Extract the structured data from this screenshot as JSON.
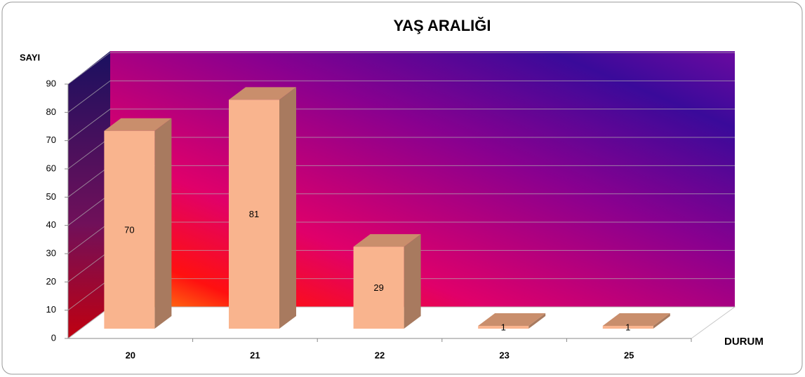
{
  "chart_data": {
    "type": "bar3d",
    "title": "YAŞ ARALIĞI",
    "y_label": "SAYI",
    "x_label": "DURUM",
    "categories": [
      "20",
      "21",
      "22",
      "23",
      "25"
    ],
    "values": [
      70,
      81,
      29,
      1,
      1
    ],
    "color": "#f9b48e",
    "ylim": [
      0,
      90
    ],
    "yticks": [
      0,
      10,
      20,
      30,
      40,
      50,
      60,
      70,
      80,
      90
    ],
    "grid": true
  }
}
